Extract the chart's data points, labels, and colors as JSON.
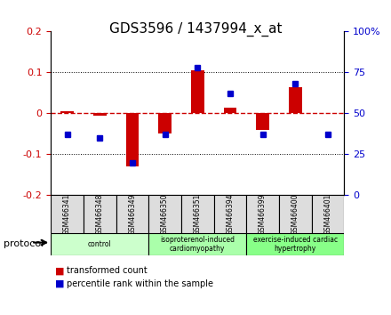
{
  "title": "GDS3596 / 1437994_x_at",
  "samples": [
    "GSM466341",
    "GSM466348",
    "GSM466349",
    "GSM466350",
    "GSM466351",
    "GSM466394",
    "GSM466399",
    "GSM466400",
    "GSM466401"
  ],
  "transformed_count": [
    0.005,
    -0.005,
    -0.13,
    -0.05,
    0.105,
    0.015,
    -0.04,
    0.065,
    0.0
  ],
  "percentile_rank": [
    37,
    35,
    20,
    37,
    78,
    62,
    37,
    68,
    37
  ],
  "left_ylim": [
    -0.2,
    0.2
  ],
  "right_ylim": [
    0,
    100
  ],
  "left_yticks": [
    -0.2,
    -0.1,
    0.0,
    0.1,
    0.2
  ],
  "right_yticks": [
    0,
    25,
    50,
    75,
    100
  ],
  "left_ytick_labels": [
    "-0.2",
    "-0.1",
    "0",
    "0.1",
    "0.2"
  ],
  "right_ytick_labels": [
    "0",
    "25",
    "50",
    "75",
    "100%"
  ],
  "bar_color": "#cc0000",
  "dot_color": "#0000cc",
  "hline_color": "#cc0000",
  "groups": [
    {
      "label": "control",
      "start": 0,
      "end": 2,
      "color": "#ccffcc"
    },
    {
      "label": "isoproterenol-induced\ncardiomyopathy",
      "start": 3,
      "end": 5,
      "color": "#aaffaa"
    },
    {
      "label": "exercise-induced cardiac\nhypertrophy",
      "start": 6,
      "end": 8,
      "color": "#88ff88"
    }
  ],
  "legend_bar_label": "transformed count",
  "legend_dot_label": "percentile rank within the sample",
  "background_color": "#ffffff",
  "plot_bg_color": "#ffffff",
  "grid_color": "#dddddd",
  "xlabel_fontsize": 7,
  "title_fontsize": 11,
  "tick_fontsize": 8
}
